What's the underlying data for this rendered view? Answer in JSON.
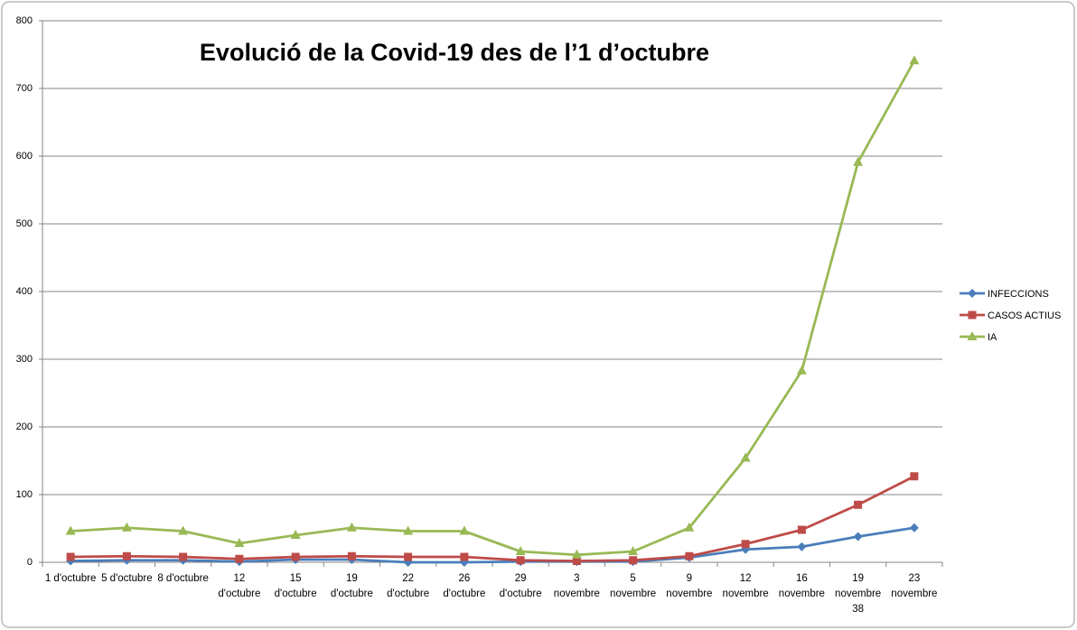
{
  "chart_data": {
    "type": "line",
    "title": "Evolució de la Covid-19 des de l’1 d’octubre",
    "categories": [
      "1 d'octubre",
      "5 d'octubre",
      "8 d'octubre",
      "12 d'octubre",
      "15 d'octubre",
      "19 d'octubre",
      "22 d'octubre",
      "26 d'octubre",
      "29 d'octubre",
      "3 novembre",
      "5 novembre",
      "9 novembre",
      "12 novembre",
      "16 novembre",
      "19 novembre 38",
      "23 novembre"
    ],
    "series": [
      {
        "name": "INFECCIONS",
        "color": "#4a7ebb",
        "marker": "diamond",
        "values": [
          2,
          3,
          3,
          1,
          4,
          4,
          0,
          0,
          1,
          1,
          1,
          7,
          19,
          23,
          38,
          51
        ]
      },
      {
        "name": "CASOS ACTIUS",
        "color": "#be4b48",
        "marker": "square",
        "values": [
          8,
          9,
          8,
          5,
          8,
          9,
          8,
          8,
          3,
          2,
          3,
          9,
          27,
          48,
          85,
          127
        ]
      },
      {
        "name": "IA",
        "color": "#98b954",
        "marker": "triangle",
        "values": [
          46,
          51,
          46,
          28,
          40,
          51,
          46,
          46,
          16,
          11,
          16,
          51,
          154,
          283,
          591,
          741
        ]
      }
    ],
    "ylim": [
      0,
      800
    ],
    "yticks": [
      0,
      100,
      200,
      300,
      400,
      500,
      600,
      700,
      800
    ],
    "grid": true,
    "legend": "right"
  }
}
